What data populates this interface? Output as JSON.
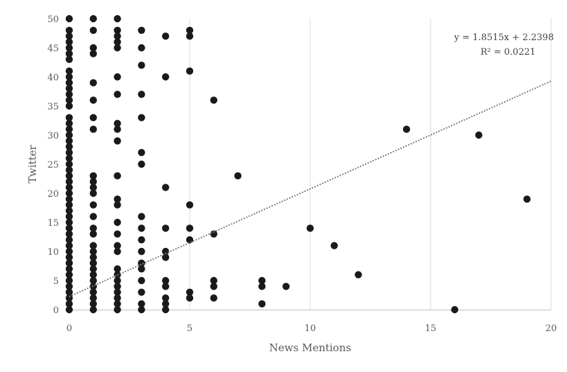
{
  "chart_data": {
    "type": "scatter",
    "xlabel": "News Mentions",
    "ylabel": "Twitter",
    "xlim": [
      0,
      20
    ],
    "ylim": [
      0,
      50
    ],
    "x_ticks": [
      "0",
      "5",
      "10",
      "15",
      "20"
    ],
    "y_ticks": [
      "0",
      "5",
      "10",
      "15",
      "20",
      "25",
      "30",
      "35",
      "40",
      "45",
      "50"
    ],
    "grid": "vertical",
    "colors": {
      "points": "#1a1a1a",
      "trendline": "#7f7f7f",
      "grid": "#d9d9d9"
    },
    "trendline": {
      "type": "linear",
      "slope": 1.8515,
      "intercept": 2.2398,
      "equation": "y = 1.8515x + 2.2398",
      "r_squared": "R² = 0.0221"
    },
    "points": [
      [
        0,
        0
      ],
      [
        0,
        1
      ],
      [
        0,
        2
      ],
      [
        0,
        3
      ],
      [
        0,
        4
      ],
      [
        0,
        5
      ],
      [
        0,
        6
      ],
      [
        0,
        7
      ],
      [
        0,
        8
      ],
      [
        0,
        9
      ],
      [
        0,
        10
      ],
      [
        0,
        11
      ],
      [
        0,
        12
      ],
      [
        0,
        13
      ],
      [
        0,
        14
      ],
      [
        0,
        15
      ],
      [
        0,
        16
      ],
      [
        0,
        17
      ],
      [
        0,
        18
      ],
      [
        0,
        19
      ],
      [
        0,
        20
      ],
      [
        0,
        21
      ],
      [
        0,
        22
      ],
      [
        0,
        23
      ],
      [
        0,
        24
      ],
      [
        0,
        25
      ],
      [
        0,
        26
      ],
      [
        0,
        27
      ],
      [
        0,
        28
      ],
      [
        0,
        29
      ],
      [
        0,
        30
      ],
      [
        0,
        31
      ],
      [
        0,
        32
      ],
      [
        0,
        33
      ],
      [
        0,
        35
      ],
      [
        0,
        36
      ],
      [
        0,
        37
      ],
      [
        0,
        38
      ],
      [
        0,
        39
      ],
      [
        0,
        40
      ],
      [
        0,
        41
      ],
      [
        0,
        43
      ],
      [
        0,
        44
      ],
      [
        0,
        45
      ],
      [
        0,
        46
      ],
      [
        0,
        47
      ],
      [
        0,
        48
      ],
      [
        0,
        50
      ],
      [
        1,
        0
      ],
      [
        1,
        1
      ],
      [
        1,
        2
      ],
      [
        1,
        3
      ],
      [
        1,
        4
      ],
      [
        1,
        5
      ],
      [
        1,
        6
      ],
      [
        1,
        7
      ],
      [
        1,
        8
      ],
      [
        1,
        9
      ],
      [
        1,
        10
      ],
      [
        1,
        11
      ],
      [
        1,
        13
      ],
      [
        1,
        14
      ],
      [
        1,
        16
      ],
      [
        1,
        18
      ],
      [
        1,
        20
      ],
      [
        1,
        21
      ],
      [
        1,
        22
      ],
      [
        1,
        23
      ],
      [
        1,
        31
      ],
      [
        1,
        33
      ],
      [
        1,
        36
      ],
      [
        1,
        39
      ],
      [
        1,
        44
      ],
      [
        1,
        45
      ],
      [
        1,
        48
      ],
      [
        1,
        50
      ],
      [
        2,
        0
      ],
      [
        2,
        1
      ],
      [
        2,
        2
      ],
      [
        2,
        3
      ],
      [
        2,
        4
      ],
      [
        2,
        5
      ],
      [
        2,
        6
      ],
      [
        2,
        7
      ],
      [
        2,
        10
      ],
      [
        2,
        11
      ],
      [
        2,
        13
      ],
      [
        2,
        15
      ],
      [
        2,
        18
      ],
      [
        2,
        19
      ],
      [
        2,
        23
      ],
      [
        2,
        29
      ],
      [
        2,
        31
      ],
      [
        2,
        32
      ],
      [
        2,
        37
      ],
      [
        2,
        40
      ],
      [
        2,
        45
      ],
      [
        2,
        46
      ],
      [
        2,
        47
      ],
      [
        2,
        48
      ],
      [
        2,
        50
      ],
      [
        3,
        0
      ],
      [
        3,
        1
      ],
      [
        3,
        3
      ],
      [
        3,
        5
      ],
      [
        3,
        7
      ],
      [
        3,
        8
      ],
      [
        3,
        10
      ],
      [
        3,
        12
      ],
      [
        3,
        14
      ],
      [
        3,
        16
      ],
      [
        3,
        25
      ],
      [
        3,
        27
      ],
      [
        3,
        33
      ],
      [
        3,
        37
      ],
      [
        3,
        42
      ],
      [
        3,
        45
      ],
      [
        3,
        48
      ],
      [
        4,
        0
      ],
      [
        4,
        1
      ],
      [
        4,
        2
      ],
      [
        4,
        4
      ],
      [
        4,
        5
      ],
      [
        4,
        9
      ],
      [
        4,
        10
      ],
      [
        4,
        14
      ],
      [
        4,
        21
      ],
      [
        4,
        40
      ],
      [
        4,
        47
      ],
      [
        5,
        2
      ],
      [
        5,
        3
      ],
      [
        5,
        12
      ],
      [
        5,
        14
      ],
      [
        5,
        18
      ],
      [
        5,
        41
      ],
      [
        5,
        47
      ],
      [
        5,
        48
      ],
      [
        6,
        2
      ],
      [
        6,
        4
      ],
      [
        6,
        5
      ],
      [
        6,
        13
      ],
      [
        6,
        36
      ],
      [
        7,
        23
      ],
      [
        8,
        1
      ],
      [
        8,
        4
      ],
      [
        8,
        5
      ],
      [
        9,
        4
      ],
      [
        10,
        14
      ],
      [
        11,
        11
      ],
      [
        12,
        6
      ],
      [
        14,
        31
      ],
      [
        16,
        0
      ],
      [
        17,
        30
      ],
      [
        19,
        19
      ]
    ]
  }
}
